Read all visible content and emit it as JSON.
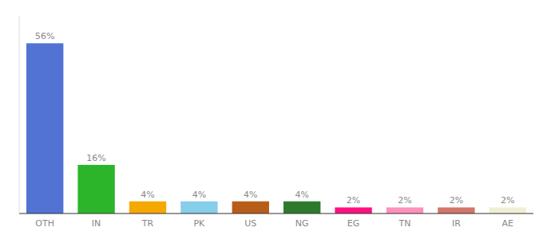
{
  "chart_data": {
    "type": "bar",
    "categories": [
      "OTH",
      "IN",
      "TR",
      "PK",
      "US",
      "NG",
      "EG",
      "TN",
      "IR",
      "AE"
    ],
    "values": [
      56,
      16,
      4,
      4,
      4,
      4,
      2,
      2,
      2,
      2
    ],
    "value_labels": [
      "56%",
      "16%",
      "4%",
      "4%",
      "4%",
      "4%",
      "2%",
      "2%",
      "2%",
      "2%"
    ],
    "colors": [
      "#5272d4",
      "#2cb52b",
      "#f5a800",
      "#87ceeb",
      "#b85c1a",
      "#2d7a2d",
      "#ff1080",
      "#ff90bb",
      "#d4756b",
      "#f0eed5"
    ],
    "ylim": [
      0,
      65
    ],
    "data_labels": true,
    "tick_labels": "x",
    "grid": false
  }
}
